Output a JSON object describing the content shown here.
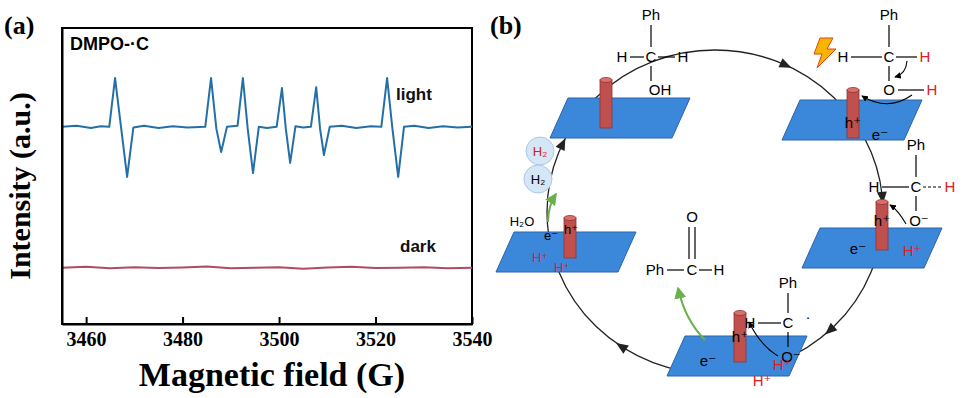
{
  "chart_data": {
    "type": "line",
    "panel_label": "(a)",
    "title": "DMPO-·C",
    "x_label": "Magnetic field (G)",
    "y_label": "Intensity (a.u.)",
    "xlim": [
      3455,
      3540
    ],
    "xticks": [
      3460,
      3480,
      3500,
      3520,
      3540
    ],
    "ylim": [
      0,
      10
    ],
    "tick_labels": "x",
    "series": [
      {
        "name": "light",
        "color": "#2470a6",
        "x": [
          3455,
          3458,
          3461,
          3463,
          3464.8,
          3466.0,
          3467.2,
          3468.5,
          3469.8,
          3472,
          3475,
          3478,
          3481,
          3484.7,
          3485.9,
          3487.0,
          3488.0,
          3489.2,
          3491.4,
          3492.5,
          3493.5,
          3494.6,
          3495.8,
          3497.5,
          3499.5,
          3500.6,
          3501.4,
          3502.3,
          3503.4,
          3505,
          3506.6,
          3507.7,
          3508.5,
          3509.3,
          3510.5,
          3513,
          3516,
          3519,
          3521.2,
          3522.4,
          3523.5,
          3524.7,
          3525.9,
          3528,
          3531,
          3534,
          3537,
          3540
        ],
        "values": [
          6.66,
          6.7,
          6.62,
          6.68,
          6.66,
          8.31,
          6.7,
          4.97,
          6.64,
          6.7,
          6.62,
          6.68,
          6.64,
          6.66,
          8.31,
          6.6,
          5.81,
          6.66,
          6.7,
          8.31,
          6.6,
          5.1,
          6.66,
          6.62,
          6.66,
          7.97,
          6.6,
          5.44,
          6.68,
          6.64,
          6.66,
          8.0,
          6.6,
          5.71,
          6.66,
          6.7,
          6.62,
          6.68,
          6.66,
          8.31,
          6.6,
          4.97,
          6.66,
          6.7,
          6.62,
          6.68,
          6.64,
          6.66
        ]
      },
      {
        "name": "dark",
        "color": "#b34a64",
        "x": [
          3455,
          3460,
          3465,
          3470,
          3475,
          3480,
          3485,
          3490,
          3495,
          3500,
          3505,
          3510,
          3515,
          3520,
          3525,
          3530,
          3535,
          3540
        ],
        "values": [
          1.9,
          1.93,
          1.88,
          1.92,
          1.89,
          1.91,
          1.94,
          1.88,
          1.9,
          1.92,
          1.87,
          1.91,
          1.93,
          1.89,
          1.9,
          1.92,
          1.88,
          1.9
        ]
      }
    ]
  },
  "diagram": {
    "panel_label": "(b)",
    "steps": [
      {
        "texts": [
          "Ph",
          "H",
          "C",
          "H",
          "OH"
        ]
      },
      {
        "texts": [
          "Ph",
          "H",
          "C",
          "H",
          "O",
          "H",
          "h⁺",
          "e⁻"
        ]
      },
      {
        "texts": [
          "Ph",
          "H",
          "C",
          "H",
          "O⁻",
          "h⁺",
          "e⁻",
          "H⁺"
        ]
      },
      {
        "texts": [
          "Ph",
          "H",
          "C",
          "·",
          "O⁻",
          "h⁺",
          "e⁻",
          "H⁺",
          "H⁺"
        ]
      },
      {
        "texts": [
          "H₂O",
          "e⁻",
          "h⁺",
          "H⁺",
          "H⁺",
          "H₂",
          "H₂"
        ]
      }
    ],
    "product": {
      "texts": [
        "Ph",
        "C",
        "H",
        "O"
      ]
    }
  }
}
